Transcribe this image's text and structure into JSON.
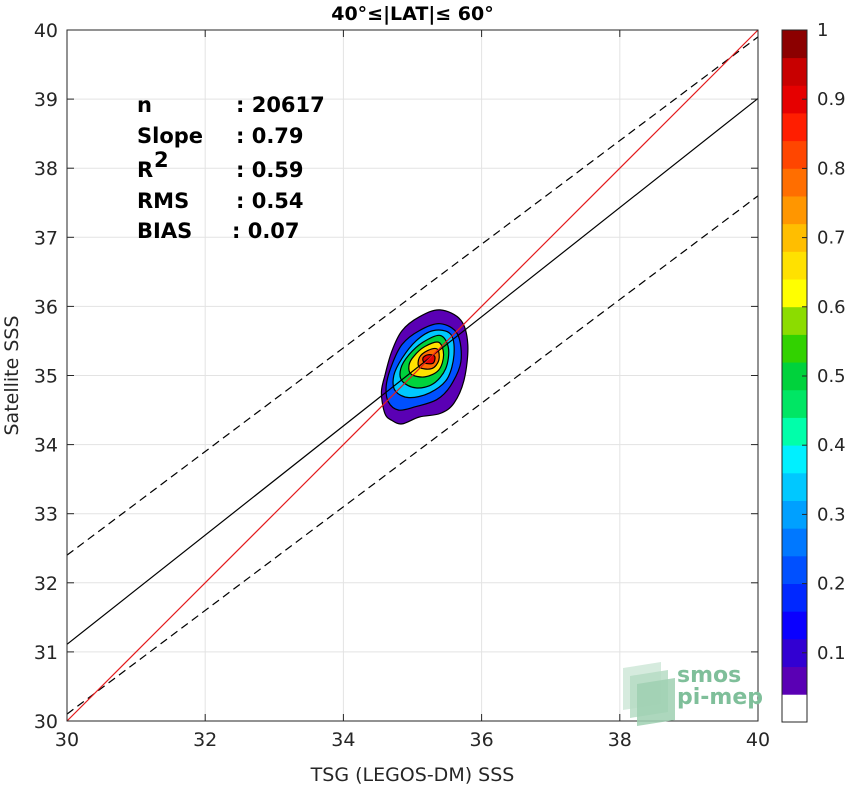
{
  "chart_data": {
    "type": "scatter",
    "title": "40°≤|LAT|≤ 60°",
    "xlabel": "TSG (LEGOS-DM) SSS",
    "ylabel": "Satellite SSS",
    "xlim": [
      30,
      40
    ],
    "ylim": [
      30,
      40
    ],
    "xticks": [
      "30",
      "32",
      "34",
      "36",
      "38",
      "40"
    ],
    "yticks": [
      "30",
      "31",
      "32",
      "33",
      "34",
      "35",
      "36",
      "37",
      "38",
      "39",
      "40"
    ],
    "grid": true,
    "stats": [
      {
        "label": "n",
        "value": ": 20617"
      },
      {
        "label": "Slope",
        "value": ": 0.79"
      },
      {
        "label": "R",
        "sup": "2",
        "value": ": 0.59"
      },
      {
        "label": "RMS",
        "value": ": 0.54"
      },
      {
        "label": "BIAS",
        "value": ": 0.07"
      }
    ],
    "lines": {
      "identity": {
        "slope": 1,
        "intercept": 0,
        "color": "#e41a1c"
      },
      "fit": {
        "slope": 0.79,
        "intercept": 7.41,
        "color": "#000000"
      },
      "upper_dashed": {
        "slope": 0.75,
        "intercept": 9.9
      },
      "lower_dashed": {
        "slope": 0.75,
        "intercept": 7.6
      }
    },
    "density": {
      "peak": [
        35.25,
        35.25
      ],
      "contours": [
        {
          "level": 0.05,
          "ring": [
            [
              34.6,
              34.45
            ],
            [
              34.7,
              34.35
            ],
            [
              34.85,
              34.3
            ],
            [
              35.1,
              34.4
            ],
            [
              35.4,
              34.45
            ],
            [
              35.6,
              34.6
            ],
            [
              35.75,
              34.95
            ],
            [
              35.8,
              35.45
            ],
            [
              35.7,
              35.8
            ],
            [
              35.4,
              35.95
            ],
            [
              35.1,
              35.85
            ],
            [
              34.85,
              35.65
            ],
            [
              34.7,
              35.35
            ],
            [
              34.6,
              35.0
            ],
            [
              34.55,
              34.75
            ]
          ]
        },
        {
          "level": 0.2,
          "ring": [
            [
              34.65,
              34.62
            ],
            [
              34.8,
              34.5
            ],
            [
              35.05,
              34.55
            ],
            [
              35.35,
              34.65
            ],
            [
              35.55,
              34.85
            ],
            [
              35.7,
              35.2
            ],
            [
              35.65,
              35.6
            ],
            [
              35.4,
              35.75
            ],
            [
              35.1,
              35.65
            ],
            [
              34.85,
              35.45
            ],
            [
              34.7,
              35.15
            ],
            [
              34.62,
              34.85
            ]
          ]
        },
        {
          "level": 0.35,
          "ring": [
            [
              34.75,
              34.78
            ],
            [
              34.95,
              34.68
            ],
            [
              35.25,
              34.75
            ],
            [
              35.5,
              34.95
            ],
            [
              35.6,
              35.3
            ],
            [
              35.55,
              35.6
            ],
            [
              35.3,
              35.65
            ],
            [
              35.05,
              35.5
            ],
            [
              34.85,
              35.25
            ],
            [
              34.73,
              35.0
            ]
          ]
        },
        {
          "level": 0.5,
          "ring": [
            [
              34.85,
              34.92
            ],
            [
              35.05,
              34.82
            ],
            [
              35.3,
              34.88
            ],
            [
              35.48,
              35.1
            ],
            [
              35.52,
              35.4
            ],
            [
              35.4,
              35.58
            ],
            [
              35.15,
              35.48
            ],
            [
              34.95,
              35.3
            ],
            [
              34.83,
              35.1
            ]
          ]
        },
        {
          "level": 0.65,
          "ring": [
            [
              34.98,
              35.02
            ],
            [
              35.18,
              34.98
            ],
            [
              35.38,
              35.08
            ],
            [
              35.45,
              35.3
            ],
            [
              35.38,
              35.48
            ],
            [
              35.18,
              35.42
            ],
            [
              35.02,
              35.28
            ],
            [
              34.95,
              35.15
            ]
          ]
        },
        {
          "level": 0.8,
          "ring": [
            [
              35.1,
              35.12
            ],
            [
              35.28,
              35.1
            ],
            [
              35.38,
              35.22
            ],
            [
              35.36,
              35.38
            ],
            [
              35.22,
              35.36
            ],
            [
              35.1,
              35.26
            ]
          ]
        },
        {
          "level": 0.92,
          "ring": [
            [
              35.18,
              35.18
            ],
            [
              35.3,
              35.18
            ],
            [
              35.32,
              35.28
            ],
            [
              35.22,
              35.3
            ],
            [
              35.15,
              35.25
            ]
          ]
        }
      ]
    },
    "colorbar": {
      "ticks": [
        "0.1",
        "0.2",
        "0.3",
        "0.4",
        "0.5",
        "0.6",
        "0.7",
        "0.8",
        "0.9",
        "1"
      ],
      "range": [
        0,
        1
      ],
      "colors": [
        "#ffffff",
        "#5a00b4",
        "#3200d2",
        "#0a00ff",
        "#0028ff",
        "#0050ff",
        "#0078ff",
        "#00a0ff",
        "#00c8ff",
        "#00f0ff",
        "#00ffaa",
        "#00e664",
        "#00d23c",
        "#32d200",
        "#8cdc00",
        "#ffff00",
        "#ffe100",
        "#ffbe00",
        "#ff9600",
        "#ff6e00",
        "#ff4600",
        "#ff1e00",
        "#e60000",
        "#c80000",
        "#8c0000"
      ]
    },
    "logo": {
      "line1": "smos",
      "line2": "pi-mep"
    }
  }
}
